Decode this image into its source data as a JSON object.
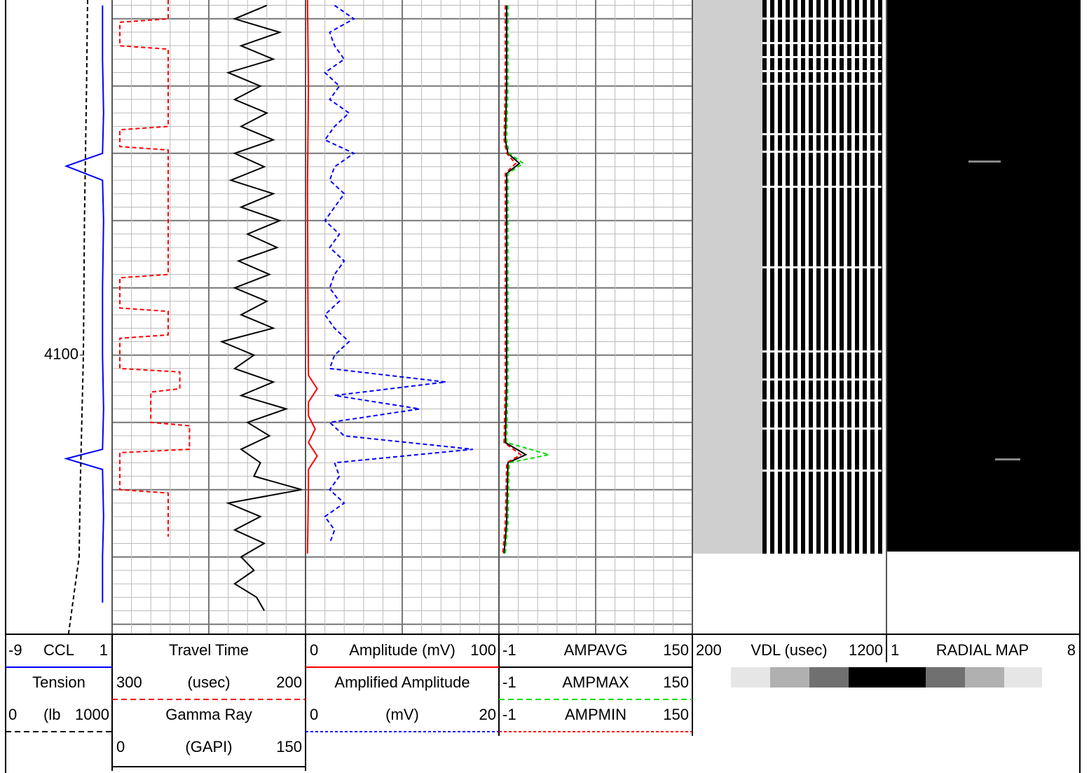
{
  "chart_data": [
    {
      "type": "line",
      "ylim": [
        4047.2,
        4141.5
      ],
      "yticks": [
        4100
      ],
      "series": [
        {
          "name": "CCL",
          "color": "#0000ff",
          "dash": false,
          "xlim": [
            -9,
            1
          ],
          "depth": [
            4048,
            4056,
            4064,
            4070,
            4071.9,
            4074,
            4080,
            4090,
            4100,
            4108,
            4114,
            4115.4,
            4117,
            4124,
            4130,
            4136.8
          ],
          "values": [
            0.1,
            0.1,
            0.2,
            0.1,
            -3.3,
            0.1,
            0.2,
            0.1,
            0.1,
            0.2,
            0.1,
            -3.3,
            0.1,
            0.2,
            0.1,
            0.1
          ]
        },
        {
          "name": "Tension",
          "unit": "(lb",
          "color": "#000000",
          "dash": true,
          "xlim": [
            0,
            1000
          ],
          "depth": [
            4047.2,
            4060,
            4080,
            4100,
            4120,
            4130,
            4141.5
          ],
          "values": [
            770,
            760,
            740,
            730,
            700,
            690,
            590
          ]
        }
      ]
    },
    {
      "type": "line",
      "ylim": [
        4047.2,
        4141.5
      ],
      "grid": true,
      "series": [
        {
          "name": "Travel Time",
          "unit": "(usec)",
          "color": "#ff0000",
          "dash": true,
          "xlim": [
            300,
            200
          ],
          "depth": [
            4047.2,
            4050,
            4050.5,
            4054,
            4054.5,
            4066,
            4066.5,
            4069,
            4069.5,
            4088,
            4088.5,
            4093,
            4093.5,
            4097,
            4097.5,
            4102,
            4102.5,
            4105,
            4105.5,
            4110,
            4110.5,
            4114,
            4114.5,
            4120,
            4120.5,
            4127
          ],
          "values": [
            271,
            271,
            296,
            296,
            271,
            271,
            296,
            296,
            271,
            271,
            296,
            296,
            271,
            271,
            296,
            296,
            265,
            265,
            280,
            280,
            260,
            260,
            296,
            296,
            271,
            271
          ]
        },
        {
          "name": "Gamma Ray",
          "unit": "(GAPI)",
          "color": "#000000",
          "dash": false,
          "xlim": [
            0,
            150
          ],
          "depth": [
            4048,
            4050,
            4052,
            4054,
            4056,
            4058,
            4060,
            4062,
            4064,
            4066,
            4068,
            4070,
            4072,
            4074,
            4076,
            4078,
            4080,
            4082,
            4084,
            4086,
            4088,
            4090,
            4092,
            4094,
            4096,
            4098,
            4100,
            4102,
            4104,
            4106,
            4108,
            4110,
            4112,
            4114,
            4116,
            4118,
            4120,
            4122,
            4124,
            4126,
            4128,
            4130,
            4132,
            4134,
            4136,
            4138
          ],
          "values": [
            120,
            95,
            130,
            100,
            125,
            90,
            115,
            95,
            120,
            100,
            125,
            95,
            118,
            92,
            125,
            100,
            130,
            105,
            128,
            98,
            122,
            95,
            120,
            100,
            125,
            85,
            110,
            95,
            125,
            100,
            135,
            105,
            122,
            100,
            115,
            110,
            147,
            90,
            115,
            95,
            118,
            100,
            110,
            95,
            112,
            118
          ]
        }
      ]
    },
    {
      "type": "line",
      "ylim": [
        4047.2,
        4141.5
      ],
      "grid": true,
      "series": [
        {
          "name": "Amplitude (mV)",
          "color": "#ff0000",
          "dash": false,
          "xlim": [
            0,
            100
          ],
          "depth": [
            4047.2,
            4060,
            4075,
            4090,
            4103,
            4105,
            4107,
            4109,
            4111,
            4113,
            4115,
            4117,
            4120,
            4129.5
          ],
          "values": [
            1,
            1.5,
            1,
            1.2,
            1.5,
            6,
            1.5,
            1.5,
            5,
            1.5,
            6,
            1.5,
            1.5,
            1
          ]
        },
        {
          "name": "Amplified Amplitude",
          "unit": "(mV)",
          "color": "#0000ff",
          "dash": true,
          "xlim": [
            0,
            20
          ],
          "depth": [
            4048,
            4050,
            4052,
            4054,
            4056,
            4058,
            4060,
            4062,
            4064,
            4066,
            4068,
            4070,
            4072,
            4074,
            4076,
            4078,
            4080,
            4082,
            4084,
            4086,
            4088,
            4090,
            4092,
            4094,
            4096,
            4098,
            4100,
            4102,
            4104,
            4106,
            4108,
            4110,
            4112,
            4114,
            4116,
            4118,
            4120,
            4122,
            4124,
            4126,
            4128
          ],
          "values": [
            3,
            5,
            2.5,
            3,
            4,
            2,
            3.5,
            2.5,
            4.5,
            3,
            2,
            5,
            3,
            2.5,
            4,
            3,
            2,
            3.5,
            2.5,
            4,
            3,
            2.5,
            3.5,
            2,
            3,
            4.5,
            3,
            2.5,
            14.5,
            3,
            11.8,
            2.5,
            4,
            17.3,
            3,
            3.5,
            2.5,
            4,
            2,
            3,
            2.5
          ]
        }
      ]
    },
    {
      "type": "line",
      "ylim": [
        4047.2,
        4141.5
      ],
      "grid": true,
      "series": [
        {
          "name": "AMPAVG",
          "color": "#000000",
          "dash": false,
          "xlim": [
            -1,
            150
          ],
          "depth": [
            4048,
            4060,
            4068,
            4070,
            4071.5,
            4073,
            4090,
            4104,
            4113,
            4114.8,
            4116,
            4125,
            4129.5
          ],
          "values": [
            5,
            5,
            4,
            6,
            15,
            5,
            5,
            5,
            4,
            20,
            6,
            5,
            3
          ]
        },
        {
          "name": "AMPMAX",
          "color": "#00dd00",
          "dash": true,
          "xlim": [
            -1,
            150
          ],
          "depth": [
            4048,
            4060,
            4068,
            4070,
            4071.5,
            4073,
            4090,
            4104,
            4113,
            4114.8,
            4116,
            4125,
            4129.5
          ],
          "values": [
            6,
            6,
            5,
            7,
            18,
            6,
            6,
            6,
            5,
            38,
            7,
            6,
            4
          ]
        },
        {
          "name": "AMPMIN",
          "color": "#ff0000",
          "dash": true,
          "xlim": [
            -1,
            150
          ],
          "depth": [
            4048,
            4060,
            4068,
            4070,
            4071.5,
            4073,
            4090,
            4104,
            4113,
            4114.8,
            4116,
            4125,
            4129.5
          ],
          "values": [
            4,
            4,
            3,
            5,
            12,
            4,
            4,
            4,
            3,
            16,
            5,
            4,
            2
          ]
        }
      ]
    },
    {
      "type": "vdl",
      "ylim": [
        4047.2,
        4141.5
      ],
      "series": [
        {
          "name": "VDL (usec)",
          "xlim": [
            200,
            1200
          ]
        }
      ]
    },
    {
      "type": "radial",
      "ylim": [
        4047.2,
        4141.5
      ],
      "series": [
        {
          "name": "RADIAL MAP",
          "xlim": [
            1,
            8
          ]
        }
      ]
    }
  ]
}
